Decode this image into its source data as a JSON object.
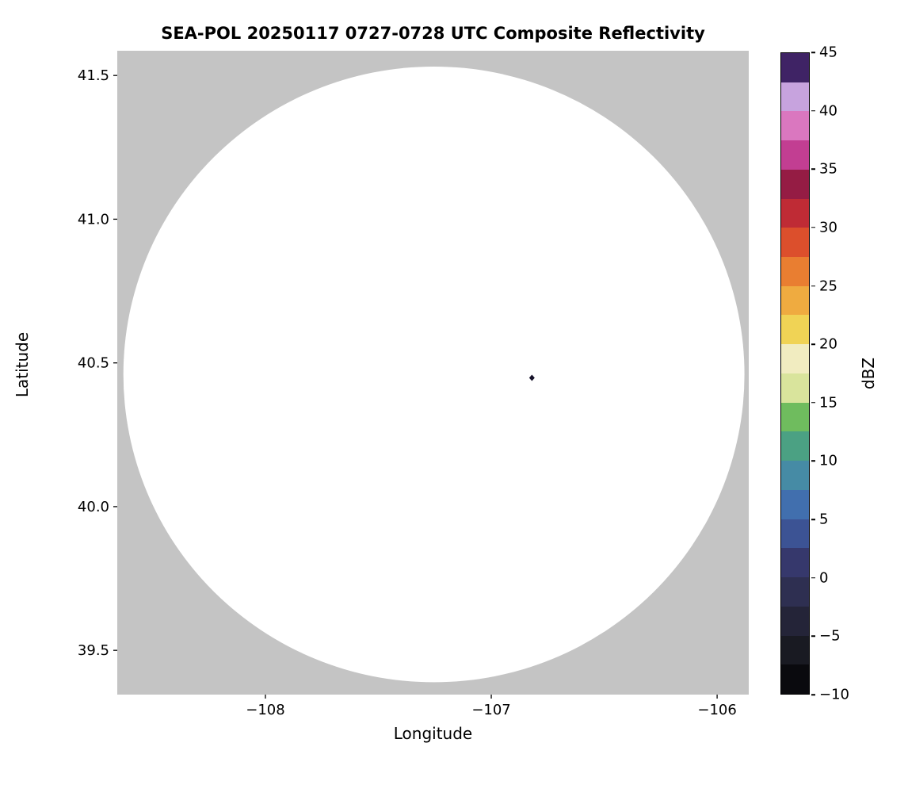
{
  "chart_data": {
    "type": "heatmap",
    "title": "SEA-POL 20250117 0727-0728 UTC Composite Reflectivity",
    "xlabel": "Longitude",
    "ylabel": "Latitude",
    "xlim": [
      -108.656,
      -105.86
    ],
    "ylim": [
      39.346,
      41.586
    ],
    "grid": false,
    "no_data_color": "#c4c4c4",
    "xticks": [
      {
        "value": -108,
        "label": "−108"
      },
      {
        "value": -107,
        "label": "−107"
      },
      {
        "value": -106,
        "label": "−106"
      }
    ],
    "yticks": [
      {
        "value": 41.5,
        "label": "41.5"
      },
      {
        "value": 41.0,
        "label": "41.0"
      },
      {
        "value": 40.5,
        "label": "40.5"
      },
      {
        "value": 40.0,
        "label": "40.0"
      },
      {
        "value": 39.5,
        "label": "39.5"
      }
    ],
    "coverage_circle": {
      "center_lon": -107.254,
      "center_lat": 40.46,
      "radius_lon_deg": 1.375,
      "radius_lat_deg": 1.071,
      "fill": "#ffffff"
    },
    "echoes": [
      {
        "lon": -106.82,
        "lat": 40.448,
        "color": "#16122a"
      }
    ],
    "colorbar": {
      "label": "dBZ",
      "min": -10,
      "max": 45,
      "ticks": [
        {
          "value": 45,
          "label": "45"
        },
        {
          "value": 40,
          "label": "40"
        },
        {
          "value": 35,
          "label": "35"
        },
        {
          "value": 30,
          "label": "30"
        },
        {
          "value": 25,
          "label": "25"
        },
        {
          "value": 20,
          "label": "20"
        },
        {
          "value": 15,
          "label": "15"
        },
        {
          "value": 10,
          "label": "10"
        },
        {
          "value": 5,
          "label": "5"
        },
        {
          "value": 0,
          "label": "0"
        },
        {
          "value": -5,
          "label": "−5"
        },
        {
          "value": -10,
          "label": "−10"
        }
      ],
      "band_colors_bottom_to_top": [
        "#0a0a0e",
        "#191a22",
        "#242438",
        "#2e2f51",
        "#36386c",
        "#3c5394",
        "#416fae",
        "#468ba5",
        "#4ba183",
        "#6fbc5e",
        "#d9e49c",
        "#f1ecc0",
        "#f0d355",
        "#efab40",
        "#e97e31",
        "#dc4f2c",
        "#bf2b35",
        "#951c44",
        "#c23e92",
        "#da77bf",
        "#c7a3de",
        "#3f2365"
      ]
    }
  }
}
